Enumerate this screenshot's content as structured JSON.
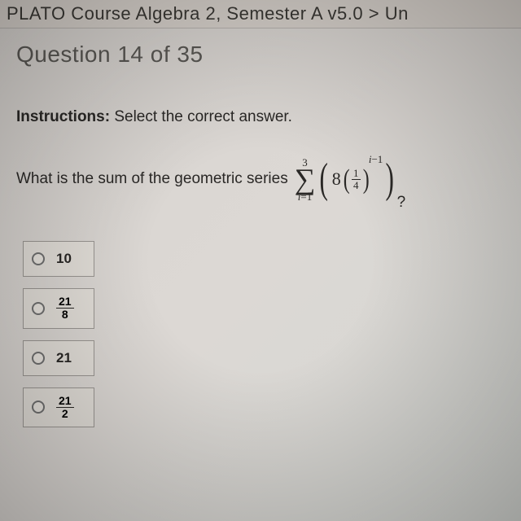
{
  "breadcrumb": "PLATO Course Algebra 2, Semester A v5.0 > Un",
  "question_header": "Question 14 of 35",
  "instructions_label": "Instructions:",
  "instructions_text": " Select the correct answer.",
  "question_stem": "What is the sum of the geometric series ",
  "formula": {
    "upper": "3",
    "lower_var": "i",
    "lower_eq": "=1",
    "coef": "8",
    "frac_num": "1",
    "frac_den": "4",
    "exp_var": "i",
    "exp_rest": "−1"
  },
  "qmark": "?",
  "options": [
    {
      "type": "plain",
      "value": "10"
    },
    {
      "type": "frac",
      "num": "21",
      "den": "8"
    },
    {
      "type": "plain",
      "value": "21"
    },
    {
      "type": "frac",
      "num": "21",
      "den": "2"
    }
  ],
  "colors": {
    "text": "#2a2826",
    "header": "#5a5854",
    "border": "#9a9692",
    "option_bg": "#e2ded8"
  }
}
